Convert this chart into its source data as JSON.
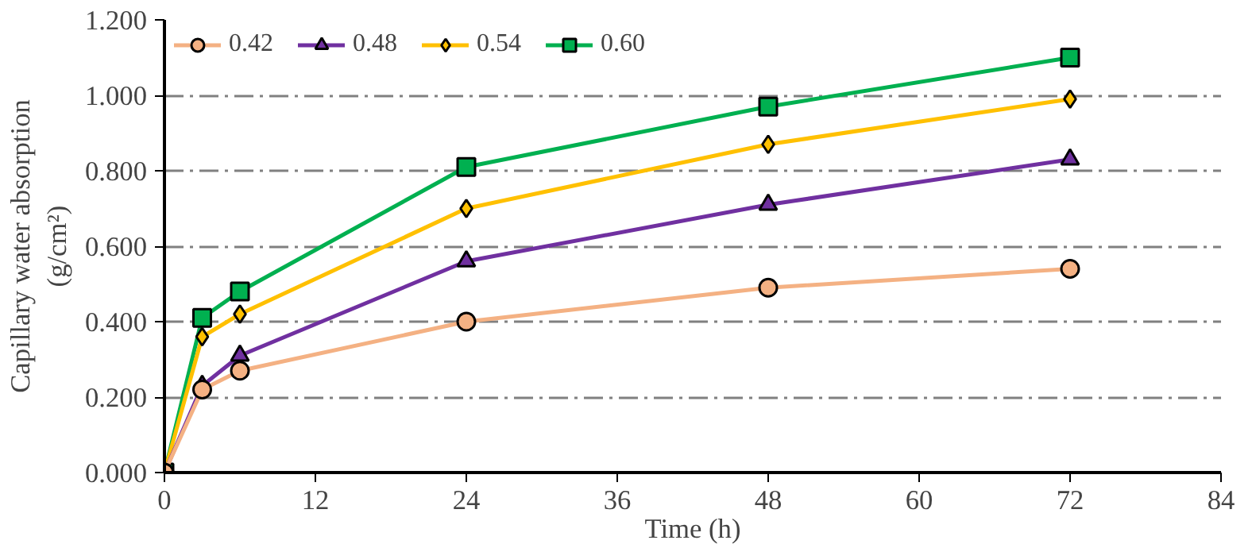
{
  "chart_data": {
    "type": "line",
    "xlabel": "Time (h)",
    "ylabel": "Capillary water absorption\n(g/cm²)",
    "x": [
      0,
      3,
      6,
      24,
      48,
      72
    ],
    "xlim": [
      0,
      84
    ],
    "xticks": [
      0,
      12,
      24,
      36,
      48,
      60,
      72,
      84
    ],
    "ylim": [
      0,
      1.2
    ],
    "yticks": [
      {
        "value": 0,
        "label": "0.000"
      },
      {
        "value": 0.2,
        "label": "0.200"
      },
      {
        "value": 0.4,
        "label": "0.400"
      },
      {
        "value": 0.6,
        "label": "0.600"
      },
      {
        "value": 0.8,
        "label": "0.800"
      },
      {
        "value": 1.0,
        "label": "1.000"
      },
      {
        "value": 1.2,
        "label": "1.200"
      }
    ],
    "grid": "y",
    "legend": "top left",
    "line_style": "solid",
    "series": [
      {
        "name": "0.42",
        "color": "#f4b183",
        "marker": "circle",
        "values": [
          0,
          0.22,
          0.27,
          0.4,
          0.49,
          0.54
        ]
      },
      {
        "name": "0.48",
        "color": "#7030a0",
        "marker": "triangle",
        "values": [
          0,
          0.23,
          0.31,
          0.56,
          0.71,
          0.83
        ]
      },
      {
        "name": "0.54",
        "color": "#ffc000",
        "marker": "diamond",
        "values": [
          0,
          0.36,
          0.42,
          0.7,
          0.87,
          0.99
        ]
      },
      {
        "name": "0.60",
        "color": "#00b050",
        "marker": "square",
        "values": [
          0,
          0.41,
          0.48,
          0.81,
          0.97,
          1.1
        ]
      }
    ]
  }
}
